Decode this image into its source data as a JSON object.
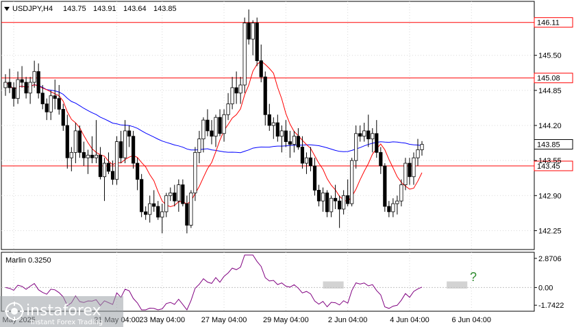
{
  "chart_data": {
    "type": "candlestick",
    "symbol_header": "USDJPY,H4",
    "ohlc_header": [
      "143.75",
      "143.91",
      "143.64",
      "143.85"
    ],
    "ylim": [
      141.9,
      146.5
    ],
    "y_ticks": [
      {
        "value": 142.25,
        "label": "142.25"
      },
      {
        "value": 142.9,
        "label": "142.90"
      },
      {
        "value": 143.55,
        "label": "143.55"
      },
      {
        "value": 144.2,
        "label": "144.20"
      },
      {
        "value": 144.85,
        "label": "144.85"
      },
      {
        "value": 145.5,
        "label": "145.50"
      }
    ],
    "current_price": {
      "value": 143.85,
      "label": "143.85"
    },
    "levels": [
      {
        "value": 146.11,
        "label": "146.11",
        "color": "#ff0000"
      },
      {
        "value": 145.08,
        "label": "145.08",
        "color": "#ff0000"
      },
      {
        "value": 143.45,
        "label": "143.45",
        "color": "#ff0000"
      }
    ],
    "x_labels": [
      {
        "bar": 2,
        "label": "19 May 2025"
      },
      {
        "bar": 27,
        "label": "21 May 04:00"
      },
      {
        "bar": 38,
        "label": "23 May 04:00"
      },
      {
        "bar": 53,
        "label": "27 May 04:00"
      },
      {
        "bar": 68,
        "label": "29 May 04:00"
      },
      {
        "bar": 83,
        "label": "2 Jun 04:00"
      },
      {
        "bar": 98,
        "label": "4 Jun 04:00"
      },
      {
        "bar": 113,
        "label": "6 Jun 04:00"
      }
    ],
    "candles": [
      [
        144.9,
        145.15,
        144.75,
        145.0
      ],
      [
        145.0,
        145.25,
        144.8,
        144.9
      ],
      [
        144.9,
        145.0,
        144.55,
        144.7
      ],
      [
        144.7,
        145.2,
        144.6,
        145.05
      ],
      [
        145.05,
        145.3,
        144.9,
        145.0
      ],
      [
        145.0,
        145.1,
        144.7,
        144.8
      ],
      [
        144.8,
        145.1,
        144.6,
        145.0
      ],
      [
        145.0,
        145.4,
        144.9,
        145.2
      ],
      [
        145.2,
        145.35,
        144.7,
        144.8
      ],
      [
        144.8,
        144.95,
        144.5,
        144.6
      ],
      [
        144.6,
        144.7,
        144.3,
        144.45
      ],
      [
        144.45,
        144.85,
        144.3,
        144.75
      ],
      [
        144.75,
        145.05,
        144.5,
        144.7
      ],
      [
        144.7,
        144.95,
        144.4,
        144.5
      ],
      [
        144.5,
        144.6,
        144.1,
        144.2
      ],
      [
        144.2,
        144.4,
        143.4,
        143.6
      ],
      [
        143.6,
        143.8,
        143.35,
        143.7
      ],
      [
        143.7,
        144.25,
        143.5,
        144.1
      ],
      [
        144.1,
        144.2,
        143.6,
        143.7
      ],
      [
        143.7,
        143.9,
        143.45,
        143.6
      ],
      [
        143.6,
        143.75,
        143.3,
        143.65
      ],
      [
        143.65,
        144.0,
        143.5,
        143.6
      ],
      [
        143.6,
        144.3,
        143.5,
        143.65
      ],
      [
        143.65,
        143.8,
        143.2,
        143.25
      ],
      [
        143.25,
        143.6,
        142.8,
        143.5
      ],
      [
        143.5,
        143.7,
        143.3,
        143.35
      ],
      [
        143.35,
        143.55,
        143.1,
        143.2
      ],
      [
        143.2,
        144.0,
        143.1,
        143.9
      ],
      [
        143.9,
        144.1,
        143.5,
        143.6
      ],
      [
        143.6,
        144.3,
        143.5,
        144.1
      ],
      [
        144.1,
        144.2,
        143.8,
        144.0
      ],
      [
        144.0,
        144.1,
        143.4,
        143.5
      ],
      [
        143.5,
        143.6,
        143.0,
        143.2
      ],
      [
        143.2,
        143.3,
        142.5,
        142.6
      ],
      [
        142.6,
        142.7,
        142.45,
        142.55
      ],
      [
        142.55,
        142.9,
        142.4,
        142.75
      ],
      [
        142.75,
        143.0,
        142.6,
        142.7
      ],
      [
        142.7,
        142.8,
        142.45,
        142.5
      ],
      [
        142.5,
        142.75,
        142.2,
        142.6
      ],
      [
        142.6,
        142.95,
        142.5,
        142.9
      ],
      [
        142.9,
        143.05,
        142.8,
        142.95
      ],
      [
        142.95,
        143.1,
        142.7,
        142.8
      ],
      [
        142.8,
        143.2,
        142.6,
        143.1
      ],
      [
        143.1,
        143.2,
        142.7,
        142.75
      ],
      [
        142.75,
        142.9,
        142.2,
        142.35
      ],
      [
        142.35,
        143.0,
        142.3,
        142.95
      ],
      [
        142.95,
        143.8,
        142.8,
        143.7
      ],
      [
        143.7,
        144.1,
        143.5,
        143.95
      ],
      [
        143.95,
        144.35,
        143.7,
        144.3
      ],
      [
        144.3,
        144.5,
        144.0,
        144.1
      ],
      [
        144.1,
        144.3,
        143.85,
        144.0
      ],
      [
        144.0,
        144.4,
        143.8,
        144.35
      ],
      [
        144.35,
        144.5,
        144.0,
        144.05
      ],
      [
        144.05,
        144.5,
        143.9,
        144.4
      ],
      [
        144.4,
        144.8,
        144.3,
        144.6
      ],
      [
        144.6,
        145.1,
        144.5,
        144.9
      ],
      [
        144.9,
        145.2,
        144.6,
        144.8
      ],
      [
        144.8,
        145.1,
        144.6,
        144.95
      ],
      [
        144.95,
        146.2,
        144.8,
        146.1
      ],
      [
        146.1,
        146.35,
        145.7,
        145.8
      ],
      [
        145.8,
        146.15,
        145.5,
        146.1
      ],
      [
        146.1,
        146.2,
        145.3,
        145.4
      ],
      [
        145.4,
        145.7,
        145.0,
        145.1
      ],
      [
        145.1,
        145.2,
        144.2,
        144.4
      ],
      [
        144.4,
        144.6,
        144.1,
        144.2
      ],
      [
        144.2,
        144.35,
        143.95,
        144.25
      ],
      [
        144.25,
        144.4,
        143.9,
        144.0
      ],
      [
        144.0,
        144.2,
        143.7,
        144.1
      ],
      [
        144.1,
        144.3,
        143.8,
        143.9
      ],
      [
        143.9,
        144.1,
        143.6,
        143.85
      ],
      [
        143.85,
        144.1,
        143.7,
        144.0
      ],
      [
        144.0,
        144.15,
        143.75,
        143.8
      ],
      [
        143.8,
        144.0,
        143.4,
        143.5
      ],
      [
        143.5,
        143.7,
        143.3,
        143.6
      ],
      [
        143.6,
        143.8,
        143.35,
        143.45
      ],
      [
        143.45,
        143.6,
        142.9,
        143.0
      ],
      [
        143.0,
        143.1,
        142.7,
        142.8
      ],
      [
        142.8,
        143.05,
        142.6,
        142.95
      ],
      [
        142.95,
        143.0,
        142.5,
        142.6
      ],
      [
        142.6,
        142.9,
        142.5,
        142.85
      ],
      [
        142.85,
        143.1,
        142.65,
        142.8
      ],
      [
        142.8,
        142.9,
        142.3,
        142.65
      ],
      [
        142.65,
        143.0,
        142.55,
        142.9
      ],
      [
        142.9,
        143.2,
        142.7,
        142.75
      ],
      [
        142.75,
        143.6,
        142.7,
        143.55
      ],
      [
        143.55,
        144.2,
        143.4,
        144.05
      ],
      [
        144.05,
        144.2,
        143.9,
        144.0
      ],
      [
        144.0,
        144.25,
        143.9,
        144.1
      ],
      [
        144.1,
        144.4,
        143.8,
        143.95
      ],
      [
        143.95,
        144.15,
        143.7,
        144.05
      ],
      [
        144.05,
        144.3,
        143.6,
        143.7
      ],
      [
        143.7,
        143.8,
        143.3,
        143.45
      ],
      [
        143.45,
        143.5,
        142.6,
        142.7
      ],
      [
        142.7,
        142.8,
        142.5,
        142.6
      ],
      [
        142.6,
        142.85,
        142.5,
        142.75
      ],
      [
        142.75,
        142.9,
        142.55,
        142.8
      ],
      [
        142.8,
        143.2,
        142.7,
        143.1
      ],
      [
        143.1,
        143.6,
        143.0,
        143.5
      ],
      [
        143.5,
        143.6,
        143.1,
        143.25
      ],
      [
        143.25,
        143.7,
        143.1,
        143.6
      ],
      [
        143.6,
        143.95,
        143.45,
        143.75
      ],
      [
        143.75,
        143.91,
        143.64,
        143.85
      ]
    ],
    "candle_x_offset": 0,
    "ma_red_name": "",
    "ma_blue_name": "",
    "indicator": {
      "name": "Marlin 0.3250",
      "ylim": [
        -2.2,
        3.2
      ],
      "ticks": [
        {
          "value": 2.8706,
          "label": "2.8706"
        },
        {
          "value": 0.0,
          "label": "0.00"
        },
        {
          "value": -1.7422,
          "label": "-1.7422"
        }
      ],
      "highlight_zones": [
        {
          "from_bar": 77,
          "to_bar": 82
        },
        {
          "from_bar": 107,
          "to_bar": 112
        }
      ],
      "annotation": "?"
    }
  },
  "watermark": {
    "brand": "instaforex",
    "tagline": "Instant Forex Trading"
  }
}
